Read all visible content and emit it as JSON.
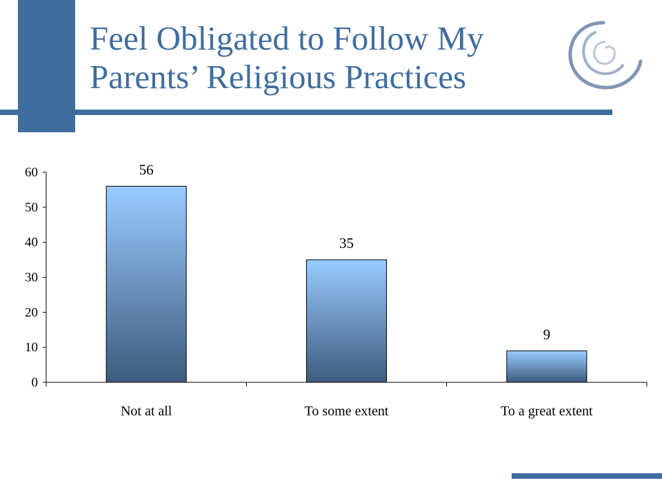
{
  "slide": {
    "title_line1": "Feel Obligated to Follow My",
    "title_line2": "Parents’ Religious Practices",
    "logo_icon": "swirl-logo-icon"
  },
  "colors": {
    "accent": "#3f6d9e",
    "bar_top": "#99ccff",
    "bar_bottom": "#3d5b7e",
    "logo": "#7f96b3"
  },
  "chart_data": {
    "type": "bar",
    "categories": [
      "Not at all",
      "To some extent",
      "To a great extent"
    ],
    "values": [
      56,
      35,
      9
    ],
    "data_labels": [
      "56",
      "35",
      "9"
    ],
    "title": "",
    "xlabel": "",
    "ylabel": "",
    "ylim": [
      0,
      60
    ],
    "yticks": [
      0,
      10,
      20,
      30,
      40,
      50,
      60
    ],
    "grid": false,
    "legend": "none"
  }
}
